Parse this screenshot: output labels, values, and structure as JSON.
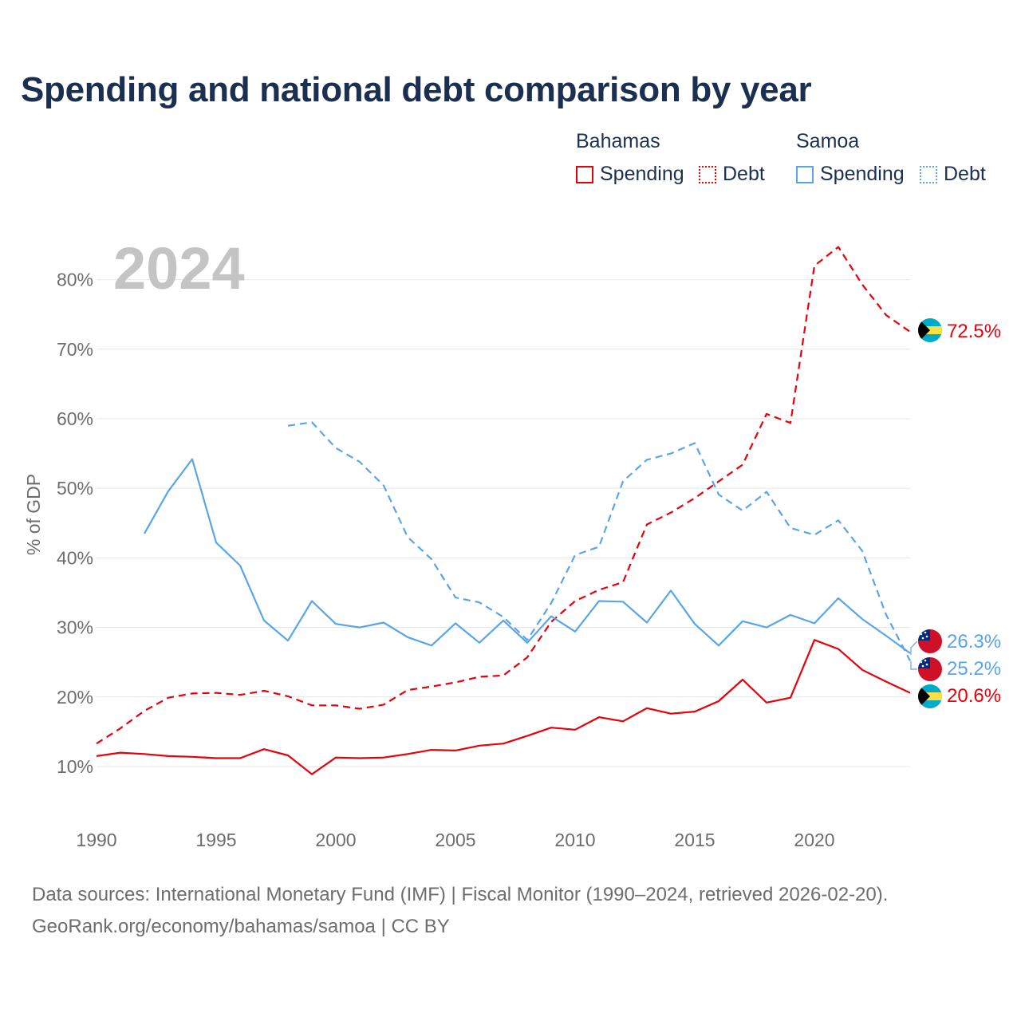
{
  "title": "Spending and national debt comparison by year",
  "legend": {
    "groups": [
      {
        "name": "Bahamas",
        "spending_label": "Spending",
        "debt_label": "Debt",
        "color": "#e8000b"
      },
      {
        "name": "Samoa",
        "spending_label": "Spending",
        "debt_label": "Debt",
        "color": "#5aa5e8"
      }
    ]
  },
  "year_watermark": "2024",
  "footer": {
    "line1": "Data sources: International Monetary Fund (IMF) | Fiscal Monitor (1990–2024, retrieved 2026-02-20).",
    "line2": "GeoRank.org/economy/bahamas/samoa | CC BY"
  },
  "chart_data": {
    "type": "line",
    "ylabel": "% of GDP",
    "xlabel": "",
    "xlim": [
      1990,
      2024
    ],
    "ylim": [
      4,
      87
    ],
    "x_ticks": [
      1990,
      1995,
      2000,
      2005,
      2010,
      2015,
      2020
    ],
    "y_ticks": [
      10,
      20,
      30,
      40,
      50,
      60,
      70,
      80
    ],
    "y_tick_labels": [
      "10%",
      "20%",
      "30%",
      "40%",
      "50%",
      "60%",
      "70%",
      "80%"
    ],
    "grid": true,
    "series": [
      {
        "name": "Bahamas Debt",
        "country": "Bahamas",
        "metric": "Debt",
        "color": "#e8000b",
        "dash": true,
        "x": [
          1990,
          1991,
          1992,
          1993,
          1994,
          1995,
          1996,
          1997,
          1998,
          1999,
          2000,
          2001,
          2002,
          2003,
          2004,
          2005,
          2006,
          2007,
          2008,
          2009,
          2010,
          2011,
          2012,
          2013,
          2014,
          2015,
          2016,
          2017,
          2018,
          2019,
          2020,
          2021,
          2022,
          2023,
          2024
        ],
        "values": [
          13.3,
          15.5,
          18.0,
          19.9,
          20.5,
          20.6,
          20.3,
          20.9,
          20.1,
          18.8,
          18.8,
          18.3,
          18.9,
          21.0,
          21.5,
          22.1,
          22.9,
          23.1,
          25.7,
          30.8,
          33.8,
          35.4,
          36.5,
          44.8,
          46.5,
          48.6,
          51.0,
          53.4,
          60.7,
          59.4,
          82.0,
          84.7,
          79.3,
          74.9,
          72.5
        ],
        "end_label": "72.5%",
        "flag": "bahamas-flag-icon"
      },
      {
        "name": "Samoa Debt",
        "country": "Samoa",
        "metric": "Debt",
        "color": "#5aa5e8",
        "dash": true,
        "x": [
          1998,
          1999,
          2000,
          2001,
          2002,
          2003,
          2004,
          2005,
          2006,
          2007,
          2008,
          2009,
          2010,
          2011,
          2012,
          2013,
          2014,
          2015,
          2016,
          2017,
          2018,
          2019,
          2020,
          2021,
          2022,
          2023,
          2024
        ],
        "values": [
          59.0,
          59.5,
          55.8,
          53.8,
          50.4,
          43.0,
          39.8,
          34.3,
          33.6,
          31.5,
          28.2,
          33.5,
          40.4,
          41.6,
          51.0,
          54.1,
          55.0,
          56.5,
          49.1,
          46.8,
          49.5,
          44.3,
          43.3,
          45.4,
          41.0,
          31.8,
          25.2
        ],
        "end_label": "25.2%",
        "flag": "samoa-flag-icon"
      },
      {
        "name": "Samoa Spending",
        "country": "Samoa",
        "metric": "Spending",
        "color": "#5aa5e8",
        "dash": false,
        "x": [
          1992,
          1993,
          1994,
          1995,
          1996,
          1997,
          1998,
          1999,
          2000,
          2001,
          2002,
          2003,
          2004,
          2005,
          2006,
          2007,
          2008,
          2009,
          2010,
          2011,
          2012,
          2013,
          2014,
          2015,
          2016,
          2017,
          2018,
          2019,
          2020,
          2021,
          2022,
          2023,
          2024
        ],
        "values": [
          43.5,
          49.6,
          54.2,
          42.2,
          38.9,
          31.0,
          28.1,
          33.8,
          30.5,
          30.0,
          30.7,
          28.6,
          27.4,
          30.6,
          27.8,
          31.0,
          27.8,
          31.6,
          29.4,
          33.8,
          33.7,
          30.7,
          35.3,
          30.5,
          27.4,
          30.9,
          30.0,
          31.8,
          30.6,
          34.2,
          31.2,
          28.8,
          26.3
        ],
        "end_label": "26.3%",
        "flag": "samoa-flag-icon"
      },
      {
        "name": "Bahamas Spending",
        "country": "Bahamas",
        "metric": "Spending",
        "color": "#e8000b",
        "dash": false,
        "x": [
          1990,
          1991,
          1992,
          1993,
          1994,
          1995,
          1996,
          1997,
          1998,
          1999,
          2000,
          2001,
          2002,
          2003,
          2004,
          2005,
          2006,
          2007,
          2008,
          2009,
          2010,
          2011,
          2012,
          2013,
          2014,
          2015,
          2016,
          2017,
          2018,
          2019,
          2020,
          2021,
          2022,
          2023,
          2024
        ],
        "values": [
          11.5,
          12.0,
          11.8,
          11.5,
          11.4,
          11.2,
          11.2,
          12.5,
          11.6,
          8.9,
          11.3,
          11.2,
          11.3,
          11.8,
          12.4,
          12.3,
          13.0,
          13.3,
          14.4,
          15.6,
          15.3,
          17.1,
          16.5,
          18.4,
          17.6,
          17.9,
          19.4,
          22.5,
          19.2,
          19.9,
          28.2,
          26.9,
          23.9,
          22.2,
          20.6
        ],
        "end_label": "20.6%",
        "flag": "bahamas-flag-icon"
      }
    ]
  }
}
